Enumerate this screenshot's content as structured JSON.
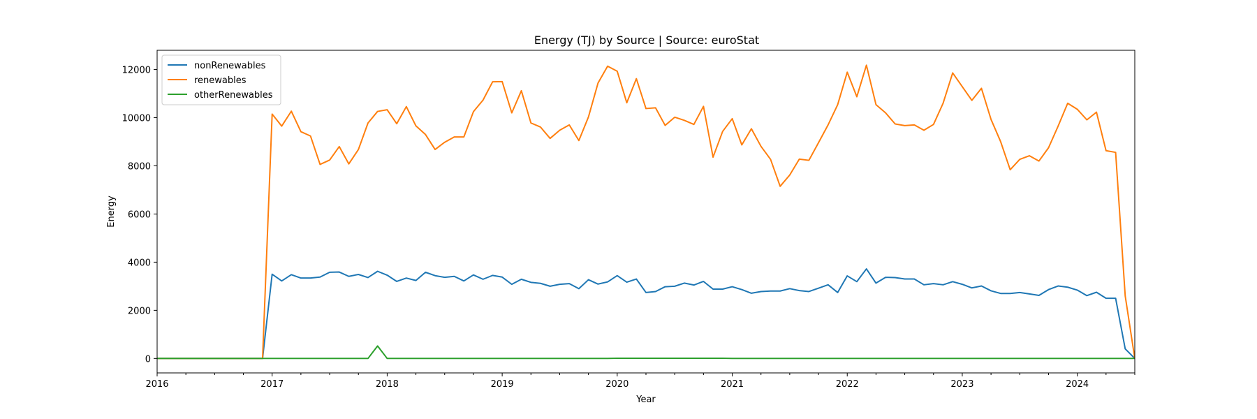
{
  "chart_data": {
    "type": "line",
    "title": "Energy (TJ) by Source | Source: euroStat",
    "xlabel": "Year",
    "ylabel": "Energy",
    "xlim": [
      "2016-01",
      "2024-07"
    ],
    "ylim": [
      -600,
      12800
    ],
    "x_ticks": [
      "2016",
      "2017",
      "2018",
      "2019",
      "2020",
      "2021",
      "2022",
      "2023",
      "2024"
    ],
    "y_ticks": [
      0,
      2000,
      4000,
      6000,
      8000,
      10000,
      12000
    ],
    "grid": false,
    "legend_position": "upper-left",
    "x": [
      "2016-01",
      "2016-02",
      "2016-03",
      "2016-04",
      "2016-05",
      "2016-06",
      "2016-07",
      "2016-08",
      "2016-09",
      "2016-10",
      "2016-11",
      "2016-12",
      "2017-01",
      "2017-02",
      "2017-03",
      "2017-04",
      "2017-05",
      "2017-06",
      "2017-07",
      "2017-08",
      "2017-09",
      "2017-10",
      "2017-11",
      "2017-12",
      "2018-01",
      "2018-02",
      "2018-03",
      "2018-04",
      "2018-05",
      "2018-06",
      "2018-07",
      "2018-08",
      "2018-09",
      "2018-10",
      "2018-11",
      "2018-12",
      "2019-01",
      "2019-02",
      "2019-03",
      "2019-04",
      "2019-05",
      "2019-06",
      "2019-07",
      "2019-08",
      "2019-09",
      "2019-10",
      "2019-11",
      "2019-12",
      "2020-01",
      "2020-02",
      "2020-03",
      "2020-04",
      "2020-05",
      "2020-06",
      "2020-07",
      "2020-08",
      "2020-09",
      "2020-10",
      "2020-11",
      "2020-12",
      "2021-01",
      "2021-02",
      "2021-03",
      "2021-04",
      "2021-05",
      "2021-06",
      "2021-07",
      "2021-08",
      "2021-09",
      "2021-10",
      "2021-11",
      "2021-12",
      "2022-01",
      "2022-02",
      "2022-03",
      "2022-04",
      "2022-05",
      "2022-06",
      "2022-07",
      "2022-08",
      "2022-09",
      "2022-10",
      "2022-11",
      "2022-12",
      "2023-01",
      "2023-02",
      "2023-03",
      "2023-04",
      "2023-05",
      "2023-06",
      "2023-07",
      "2023-08",
      "2023-09",
      "2023-10",
      "2023-11",
      "2023-12",
      "2024-01",
      "2024-02",
      "2024-03",
      "2024-04",
      "2024-05",
      "2024-06",
      "2024-07"
    ],
    "series": [
      {
        "name": "nonRenewables",
        "color": "#1f77b4",
        "values": [
          0,
          0,
          0,
          0,
          0,
          0,
          0,
          0,
          0,
          0,
          0,
          0,
          3500,
          3220,
          3480,
          3340,
          3340,
          3380,
          3580,
          3590,
          3410,
          3490,
          3360,
          3620,
          3460,
          3200,
          3340,
          3240,
          3580,
          3440,
          3370,
          3410,
          3220,
          3470,
          3290,
          3450,
          3380,
          3080,
          3290,
          3160,
          3120,
          3000,
          3080,
          3110,
          2900,
          3270,
          3090,
          3180,
          3440,
          3170,
          3300,
          2740,
          2780,
          2980,
          3000,
          3130,
          3050,
          3200,
          2880,
          2880,
          2980,
          2860,
          2710,
          2780,
          2800,
          2800,
          2900,
          2820,
          2780,
          2920,
          3060,
          2740,
          3430,
          3190,
          3720,
          3130,
          3370,
          3360,
          3300,
          3300,
          3060,
          3110,
          3060,
          3190,
          3080,
          2930,
          3010,
          2810,
          2700,
          2700,
          2740,
          2680,
          2620,
          2860,
          3010,
          2960,
          2840,
          2610,
          2750,
          2500,
          2500,
          400,
          0
        ]
      },
      {
        "name": "renewables",
        "color": "#ff7f0e",
        "values": [
          0,
          0,
          0,
          0,
          0,
          0,
          0,
          0,
          0,
          0,
          0,
          0,
          10150,
          9650,
          10270,
          9420,
          9240,
          8060,
          8240,
          8800,
          8080,
          8680,
          9780,
          10260,
          10330,
          9750,
          10460,
          9660,
          9300,
          8680,
          8980,
          9200,
          9200,
          10250,
          10730,
          11490,
          11500,
          10200,
          11120,
          9780,
          9610,
          9140,
          9480,
          9700,
          9050,
          10030,
          11440,
          12140,
          11930,
          10620,
          11620,
          10380,
          10410,
          9680,
          10020,
          9890,
          9720,
          10470,
          8360,
          9430,
          9960,
          8870,
          9540,
          8810,
          8270,
          7150,
          7620,
          8280,
          8230,
          8960,
          9700,
          10540,
          11890,
          10870,
          12180,
          10540,
          10200,
          9740,
          9670,
          9700,
          9480,
          9720,
          10600,
          11860,
          11290,
          10720,
          11220,
          9930,
          9010,
          7840,
          8270,
          8420,
          8200,
          8750,
          9650,
          10600,
          10350,
          9910,
          10230,
          8630,
          8560,
          2600,
          0
        ]
      },
      {
        "name": "otherRenewables",
        "color": "#2ca02c",
        "values": [
          0,
          0,
          0,
          0,
          0,
          0,
          0,
          0,
          0,
          0,
          0,
          0,
          0,
          0,
          0,
          0,
          0,
          0,
          0,
          0,
          0,
          0,
          0,
          520,
          0,
          0,
          0,
          0,
          0,
          0,
          0,
          0,
          0,
          0,
          0,
          0,
          0,
          0,
          0,
          0,
          0,
          0,
          0,
          0,
          0,
          0,
          0,
          0,
          10,
          10,
          10,
          10,
          10,
          10,
          10,
          10,
          10,
          10,
          10,
          10,
          0,
          0,
          0,
          0,
          0,
          0,
          0,
          0,
          0,
          0,
          0,
          0,
          0,
          0,
          0,
          0,
          0,
          0,
          0,
          0,
          0,
          0,
          0,
          0,
          0,
          0,
          0,
          0,
          0,
          0,
          0,
          0,
          0,
          0,
          0,
          0,
          0,
          0,
          0,
          0,
          0,
          0,
          0
        ]
      }
    ]
  }
}
